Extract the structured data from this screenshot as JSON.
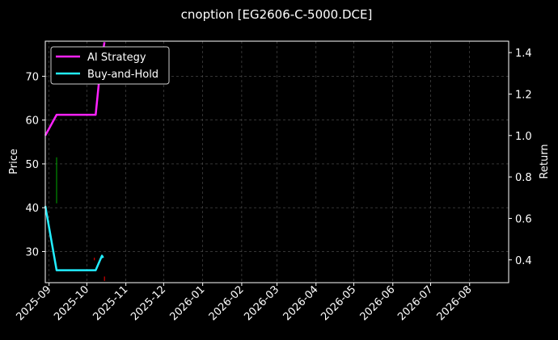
{
  "chart_data": {
    "type": "line",
    "title": "cnoption [EG2606-C-5000.DCE]",
    "xlabel": "",
    "ylabel": "Price",
    "ylabel_right": "Return",
    "background": "#000000",
    "grid": true,
    "legend_position": "top-left",
    "x_ticks": [
      "2025-09",
      "2025-10",
      "2025-11",
      "2025-12",
      "2026-01",
      "2026-02",
      "2026-03",
      "2026-04",
      "2026-05",
      "2026-06",
      "2026-07",
      "2026-08"
    ],
    "ylim_left": [
      22.9,
      78.0
    ],
    "y_ticks_left": [
      30,
      40,
      50,
      60,
      70
    ],
    "ylim_right": [
      0.29,
      1.455
    ],
    "y_ticks_right": [
      0.4,
      0.6,
      0.8,
      1.0,
      1.2,
      1.4
    ],
    "xlim": [
      "2025-08-29",
      "2026-09-01"
    ],
    "series": [
      {
        "name": "AI Strategy",
        "axis": "right",
        "color": "#ff22ff",
        "points": [
          [
            "2025-08-29",
            1.0
          ],
          [
            "2025-09-07",
            1.1
          ],
          [
            "2025-10-08",
            1.1
          ],
          [
            "2025-10-12",
            1.34
          ],
          [
            "2025-10-15",
            1.45
          ]
        ]
      },
      {
        "name": "Buy-and-Hold",
        "axis": "right",
        "color": "#22eeff",
        "points": [
          [
            "2025-08-29",
            0.66
          ],
          [
            "2025-09-07",
            0.35
          ],
          [
            "2025-10-08",
            0.35
          ],
          [
            "2025-10-13",
            0.42
          ],
          [
            "2025-10-14",
            0.41
          ]
        ]
      }
    ],
    "candles": [
      {
        "date": "2025-09-07",
        "low": 41.0,
        "high": 51.5,
        "color": "#00aa00"
      },
      {
        "date": "2025-10-07",
        "low": 28.0,
        "high": 28.6,
        "color": "#ff0000"
      },
      {
        "date": "2025-10-15",
        "low": 23.3,
        "high": 24.3,
        "color": "#ff0000"
      }
    ]
  }
}
